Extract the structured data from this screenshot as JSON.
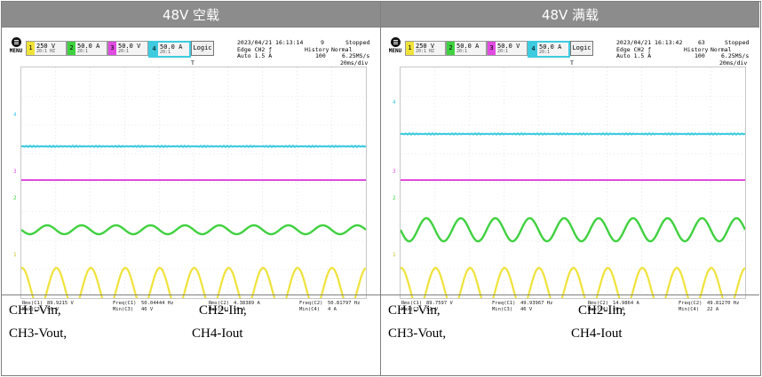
{
  "panels": [
    {
      "title": "48V 空载",
      "toolbar": {
        "menu_label": "MENU",
        "channels": [
          {
            "num": "1",
            "value": "250 V",
            "sub": "20:1 HZ",
            "color": "#f0e23a"
          },
          {
            "num": "2",
            "value": "50.0 A",
            "sub": "20:1",
            "color": "#3fd13f"
          },
          {
            "num": "3",
            "value": "50.0 V",
            "sub": "20:1",
            "color": "#e04be0"
          },
          {
            "num": "4",
            "value": "50.0 A",
            "sub": "20:1",
            "color": "#3ecbe0"
          }
        ],
        "logic_label": "Logic",
        "datetime": "2023/04/21 16:13:14",
        "trigger": "Edge CH2 ƒ",
        "trigger_level": "Auto 1.5 A",
        "history_label": "History",
        "history_value": "100",
        "acq_count": "9",
        "acq_mode": "Normal",
        "status": "Stopped",
        "sample_rate": "6.25MS/s",
        "timebase": "20ms/div",
        "trigger_marker": "T"
      },
      "measurements": [
        {
          "label1": "Rms(C1)",
          "value1": "89.9215 V",
          "label2": "Max(C3)",
          "value2": "50 V"
        },
        {
          "label1": "Freq(C1)",
          "value1": "50.04444 Hz",
          "label2": "Min(C3)",
          "value2": "46 V"
        },
        {
          "label1": "Rms(C2)",
          "value1": "4.38389 A",
          "label2": "Max(C4)",
          "value2": "10 A"
        },
        {
          "label1": "Freq(C2)",
          "value1": "50.81797 Hz",
          "label2": "Min(C4)",
          "value2": "4 A"
        }
      ],
      "note": {
        "ch1": "CH1-Vin,",
        "ch2": "CH2-Iin,",
        "ch3": "CH3-Vout,",
        "ch4": "CH4-Iout"
      }
    },
    {
      "title": "48V 满载",
      "toolbar": {
        "menu_label": "MENU",
        "channels": [
          {
            "num": "1",
            "value": "250 V",
            "sub": "20:1 HZ",
            "color": "#f0e23a"
          },
          {
            "num": "2",
            "value": "50.0 A",
            "sub": "20:1",
            "color": "#3fd13f"
          },
          {
            "num": "3",
            "value": "50.0 V",
            "sub": "20:1",
            "color": "#e04be0"
          },
          {
            "num": "4",
            "value": "50.0 A",
            "sub": "20:1",
            "color": "#3ecbe0"
          }
        ],
        "logic_label": "Logic",
        "datetime": "2023/04/21 16:13:42",
        "trigger": "Edge CH2 ƒ",
        "trigger_level": "Auto 1.5 A",
        "history_label": "History",
        "history_value": "100",
        "acq_count": "63",
        "acq_mode": "Normal",
        "status": "Stopped",
        "sample_rate": "6.25MS/s",
        "timebase": "20ms/div",
        "trigger_marker": "T"
      },
      "measurements": [
        {
          "label1": "Rms(C1)",
          "value1": "89.7597 V",
          "label2": "Max(C3)",
          "value2": "52 V"
        },
        {
          "label1": "Freq(C1)",
          "value1": "49.93967 Hz",
          "label2": "Min(C3)",
          "value2": "46 V"
        },
        {
          "label1": "Rms(C2)",
          "value1": "14.9864 A",
          "label2": "Max(C4)",
          "value2": "28 A"
        },
        {
          "label1": "Freq(C2)",
          "value1": "49.81270 Hz",
          "label2": "Min(C4)",
          "value2": "22 A"
        }
      ],
      "note": {
        "ch1": "CH1-Vin,",
        "ch2": "CH2-Iin,",
        "ch3": "CH3-Vout,",
        "ch4": "CH4-Iout"
      }
    }
  ]
}
